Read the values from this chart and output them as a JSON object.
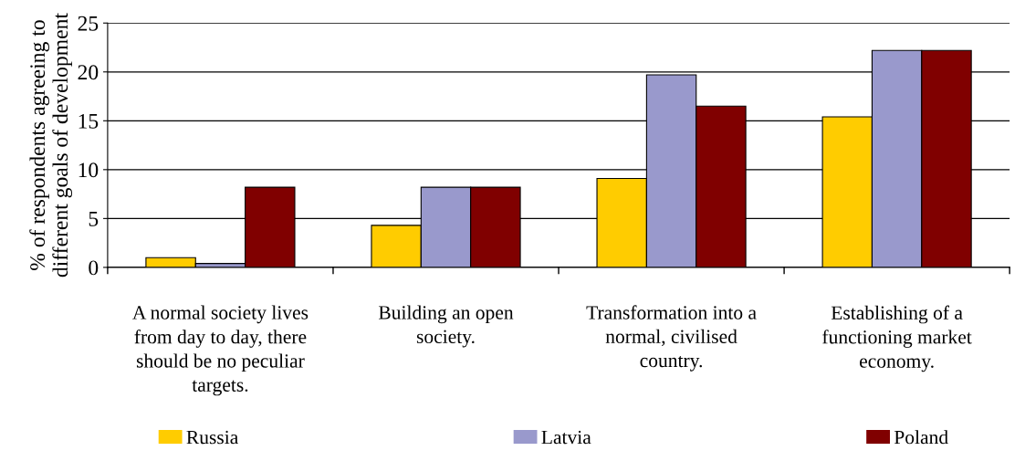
{
  "chart_data": {
    "type": "bar",
    "ylabel": "% of respondents agreeing to\ndifferent goals of development",
    "categories": [
      "A normal society lives\nfrom day to day, there\nshould be no peculiar\ntargets.",
      "Building an open\nsociety.",
      "Transformation into a\nnormal, civilised\ncountry.",
      "Establishing of a\nfunctioning market\neconomy."
    ],
    "series": [
      {
        "name": "Russia",
        "color": "#ffcc00",
        "values": [
          1.0,
          4.3,
          9.1,
          15.4
        ]
      },
      {
        "name": "Latvia",
        "color": "#9999cc",
        "values": [
          0.4,
          8.2,
          19.7,
          22.2
        ]
      },
      {
        "name": "Poland",
        "color": "#800000",
        "values": [
          8.2,
          8.2,
          16.5,
          22.2
        ]
      }
    ],
    "ylim": [
      0,
      25
    ],
    "yticks": [
      0,
      5,
      10,
      15,
      20,
      25
    ],
    "grid": "y",
    "legend": "bottom"
  }
}
